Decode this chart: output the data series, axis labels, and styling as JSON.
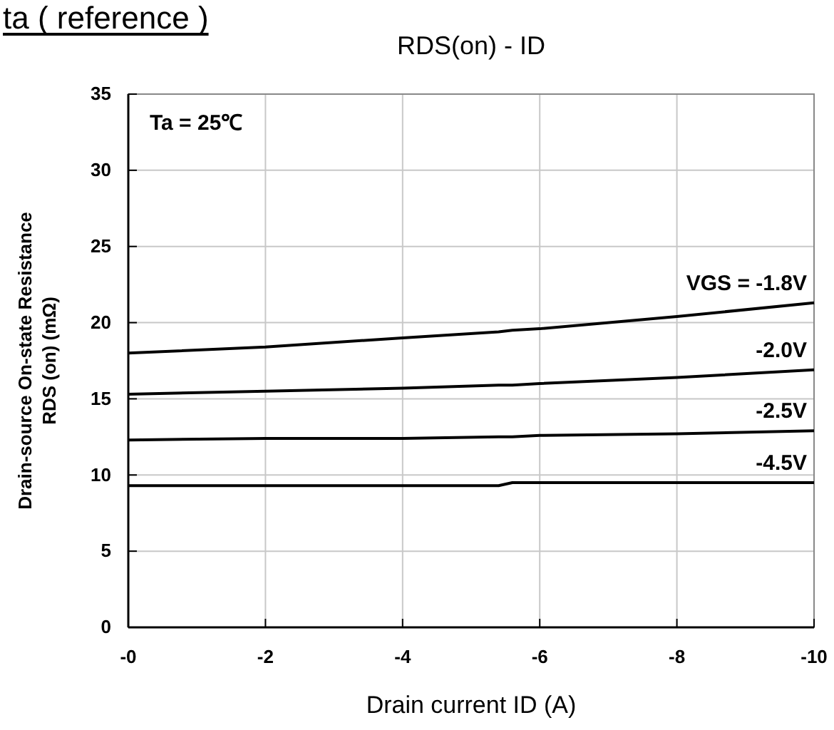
{
  "chart_data": {
    "type": "line",
    "title": "RDS(on) - ID",
    "xlabel": "Drain current ID (A)",
    "ylabel": "Drain-source On-state Resistance\nRDS (on) (mΩ)",
    "annotations": [
      "Ta = 25℃",
      "ta ( reference )"
    ],
    "x": [
      0,
      -2,
      -4,
      -5.4,
      -5.6,
      -6,
      -8,
      -10
    ],
    "series": [
      {
        "name": "VGS = -1.8V",
        "color": "#000000",
        "values": [
          18.0,
          18.4,
          19.0,
          19.4,
          19.5,
          19.6,
          20.4,
          21.3
        ]
      },
      {
        "name": "-2.0V",
        "color": "#000000",
        "values": [
          15.3,
          15.5,
          15.7,
          15.9,
          15.9,
          16.0,
          16.4,
          16.9
        ]
      },
      {
        "name": "-2.5V",
        "color": "#000000",
        "values": [
          12.3,
          12.4,
          12.4,
          12.5,
          12.5,
          12.6,
          12.7,
          12.9
        ]
      },
      {
        "name": "-4.5V",
        "color": "#000000",
        "values": [
          9.3,
          9.3,
          9.3,
          9.3,
          9.5,
          9.5,
          9.5,
          9.5
        ]
      }
    ],
    "xlim": [
      0,
      -10
    ],
    "xticks": [
      {
        "value": 0,
        "label": "-0"
      },
      -2,
      -4,
      -6,
      -8,
      -10
    ],
    "ylim": [
      0,
      35
    ],
    "yticks": [
      0,
      5,
      10,
      15,
      20,
      25,
      30,
      35
    ],
    "grid": true,
    "line_style": "solid",
    "marker": "none"
  }
}
